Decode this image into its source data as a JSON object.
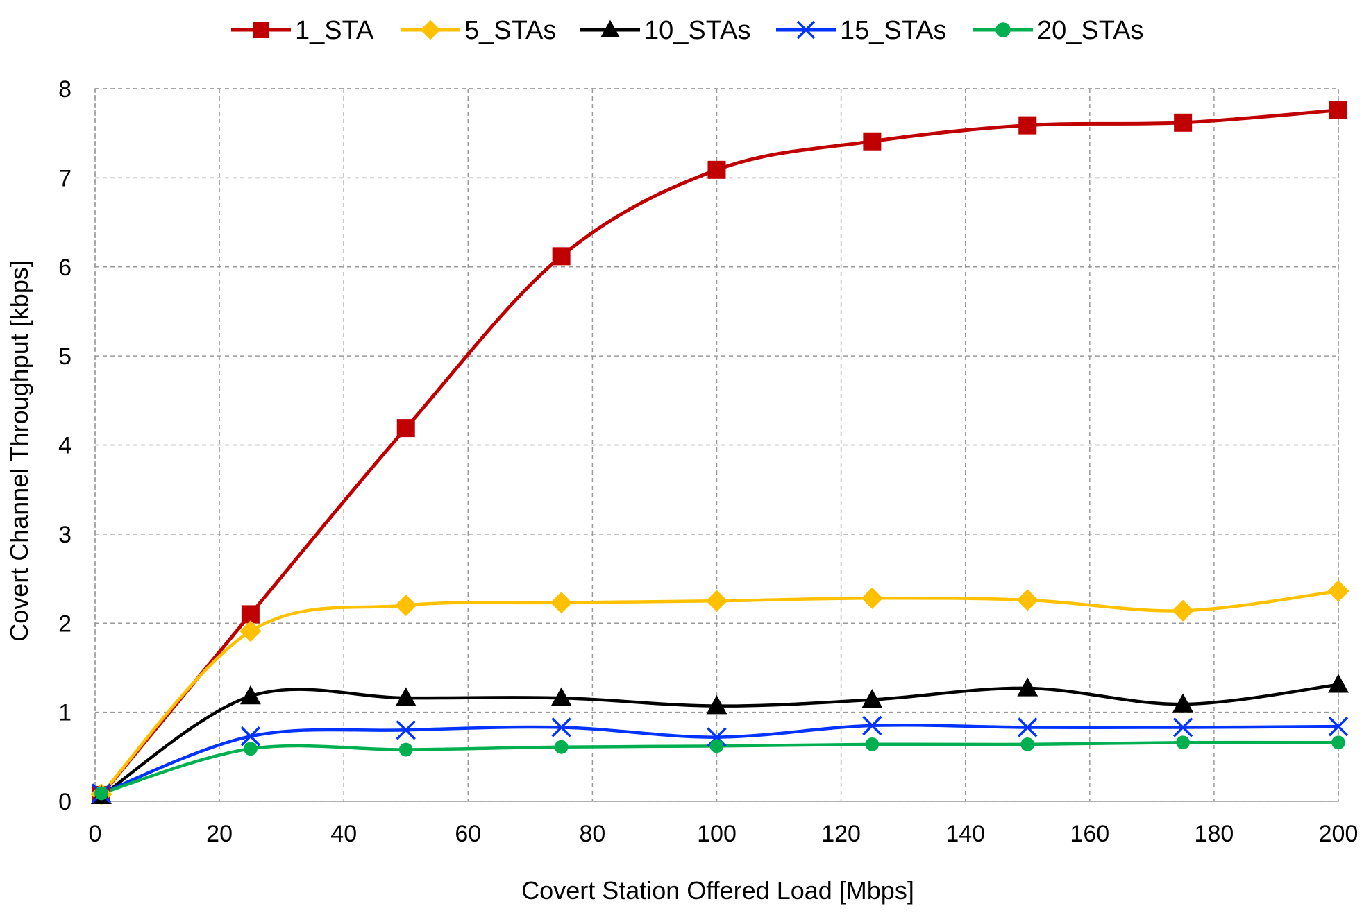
{
  "chart_data": {
    "type": "line",
    "title": "",
    "xlabel": "Covert Station Offered Load [Mbps]",
    "ylabel": "Covert Channel Throughput [kbps]",
    "xlim": [
      0,
      200
    ],
    "ylim": [
      0,
      8
    ],
    "xticks": [
      0,
      20,
      40,
      60,
      80,
      100,
      120,
      140,
      160,
      180,
      200
    ],
    "yticks": [
      0,
      1,
      2,
      3,
      4,
      5,
      6,
      7,
      8
    ],
    "grid": true,
    "legend_position": "top",
    "x": [
      1,
      25,
      50,
      75,
      100,
      125,
      150,
      175,
      200
    ],
    "series": [
      {
        "name": "1_STA",
        "color": "#C00000",
        "marker": "square",
        "values": [
          0.07,
          2.1,
          4.19,
          6.12,
          7.09,
          7.41,
          7.59,
          7.62,
          7.76
        ]
      },
      {
        "name": "5_STAs",
        "color": "#FFC000",
        "marker": "diamond",
        "values": [
          0.08,
          1.91,
          2.2,
          2.23,
          2.25,
          2.28,
          2.26,
          2.14,
          2.36
        ]
      },
      {
        "name": "10_STAs",
        "color": "#000000",
        "marker": "triangle",
        "values": [
          0.06,
          1.18,
          1.16,
          1.16,
          1.07,
          1.14,
          1.27,
          1.09,
          1.31
        ]
      },
      {
        "name": "15_STAs",
        "color": "#0033FF",
        "marker": "x",
        "values": [
          0.09,
          0.73,
          0.8,
          0.83,
          0.72,
          0.85,
          0.83,
          0.83,
          0.84
        ]
      },
      {
        "name": "20_STAs",
        "color": "#00B050",
        "marker": "circle",
        "values": [
          0.09,
          0.59,
          0.58,
          0.61,
          0.62,
          0.64,
          0.64,
          0.66,
          0.66
        ]
      }
    ]
  }
}
